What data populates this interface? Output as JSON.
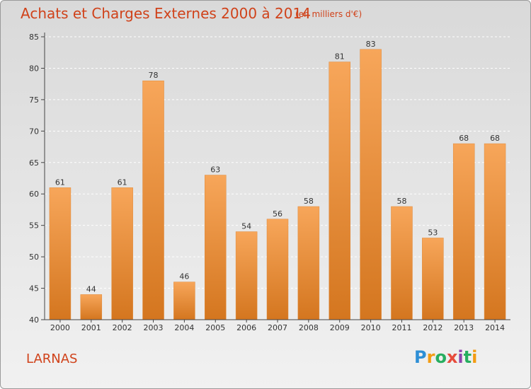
{
  "header": {
    "title": "Achats et Charges Externes 2000 à 2014",
    "unit": "(en milliers d'€)"
  },
  "footer": {
    "location": "LARNAS",
    "brand_letters": [
      "P",
      "r",
      "o",
      "x",
      "i",
      "t",
      "i"
    ],
    "brand_colors": [
      "#2e8fd6",
      "#f39c12",
      "#27ae60",
      "#e74c3c",
      "#8e44ad",
      "#27ae60",
      "#f39c12"
    ]
  },
  "colors": {
    "bar_light": "#f7a65a",
    "bar_dark": "#d4761f",
    "axis": "#444444",
    "grid": "#ffffff",
    "title": "#d0421a"
  },
  "chart_data": {
    "type": "bar",
    "title": "Achats et Charges Externes 2000 à 2014",
    "xlabel": "",
    "ylabel": "",
    "categories": [
      "2000",
      "2001",
      "2002",
      "2003",
      "2004",
      "2005",
      "2006",
      "2007",
      "2008",
      "2009",
      "2010",
      "2011",
      "2012",
      "2013",
      "2014"
    ],
    "values": [
      61,
      44,
      61,
      78,
      46,
      63,
      54,
      56,
      58,
      81,
      83,
      58,
      53,
      68,
      68
    ],
    "ylim": [
      40,
      85
    ],
    "yticks": [
      40,
      45,
      50,
      55,
      60,
      65,
      70,
      75,
      80,
      85
    ],
    "grid": true,
    "grid_style": "dashed horizontal"
  }
}
